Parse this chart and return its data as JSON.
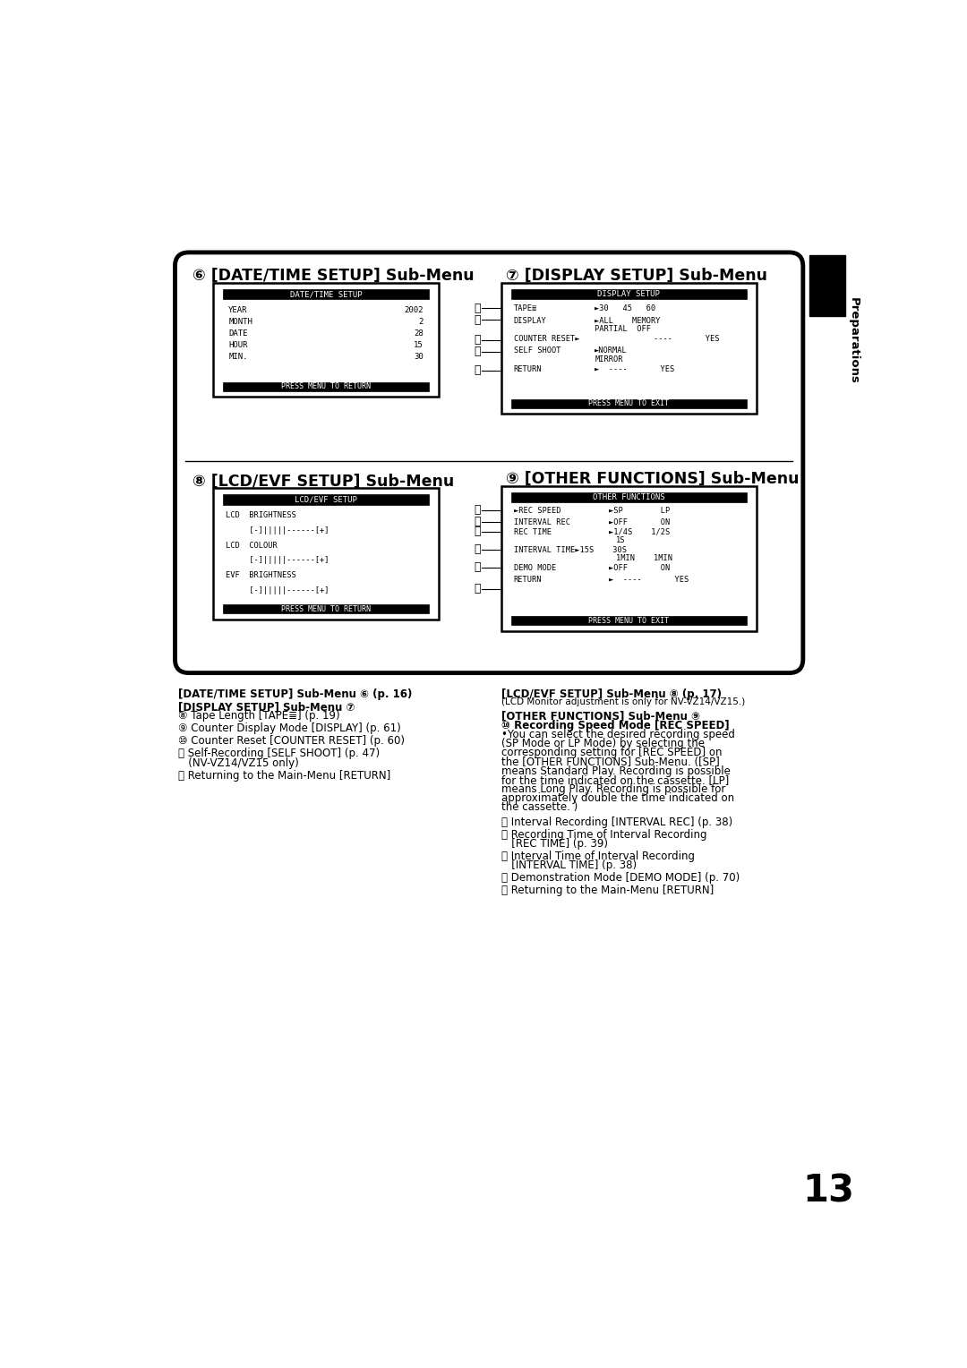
{
  "bg_color": "#ffffff",
  "page_number": "13",
  "section5_title": "⑥ [DATE/TIME SETUP] Sub-Menu",
  "section5_screen_title": "DATE∕TIME SETUP",
  "section5_bottom": "PRESS MENU TO RETURN",
  "section6_title": "⑦ [DISPLAY SETUP] Sub-Menu",
  "section6_screen_title": "DISPLAY SETUP",
  "section6_bottom": "PRESS MENU TO EXIT",
  "section7_title": "⑧ [LCD/EVF SETUP] Sub-Menu",
  "section7_screen_title": "LCD∕EVF SETUP",
  "section7_bottom": "PRESS MENU TO RETURN",
  "section8_title": "⑨ [OTHER FUNCTIONS] Sub-Menu",
  "section8_screen_title": "OTHER FUNCTIONS",
  "section8_bottom": "PRESS MENU TO EXIT"
}
